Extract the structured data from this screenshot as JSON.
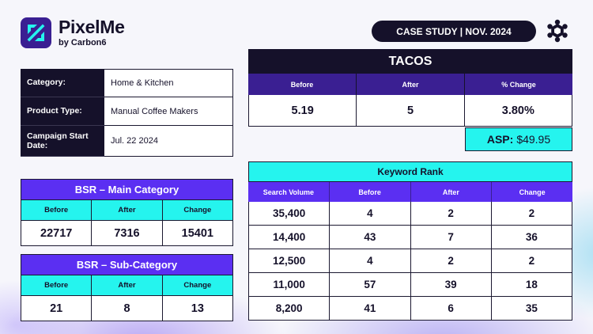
{
  "brand": {
    "name": "PixelMe",
    "sub": "by Carbon6"
  },
  "header": {
    "case_label": "CASE STUDY | NOV. 2024"
  },
  "colors": {
    "dark": "#15112a",
    "purple": "#5b2ff2",
    "deep_purple": "#3a1f92",
    "cyan": "#25f4ee"
  },
  "info": [
    {
      "key": "Category:",
      "value": "Home & Kitchen"
    },
    {
      "key": "Product Type:",
      "value": "Manual Coffee Makers"
    },
    {
      "key": "Campaign Start Date:",
      "value": "Jul. 22 2024"
    }
  ],
  "bsr_main": {
    "title": "BSR – Main Category",
    "headers": [
      "Before",
      "After",
      "Change"
    ],
    "values": [
      "22717",
      "7316",
      "15401"
    ]
  },
  "bsr_sub": {
    "title": "BSR – Sub-Category",
    "headers": [
      "Before",
      "After",
      "Change"
    ],
    "values": [
      "21",
      "8",
      "13"
    ]
  },
  "tacos": {
    "title": "TACOS",
    "headers": [
      "Before",
      "After",
      "% Change"
    ],
    "values": [
      "5.19",
      "5",
      "3.80%"
    ]
  },
  "asp": {
    "label": "ASP:",
    "value": "$49.95"
  },
  "keyword_rank": {
    "title": "Keyword Rank",
    "headers": [
      "Search Volume",
      "Before",
      "After",
      "Change"
    ],
    "rows": [
      [
        "35,400",
        "4",
        "2",
        "2"
      ],
      [
        "14,400",
        "43",
        "7",
        "36"
      ],
      [
        "12,500",
        "4",
        "2",
        "2"
      ],
      [
        "11,000",
        "57",
        "39",
        "18"
      ],
      [
        "8,200",
        "41",
        "6",
        "35"
      ]
    ]
  }
}
